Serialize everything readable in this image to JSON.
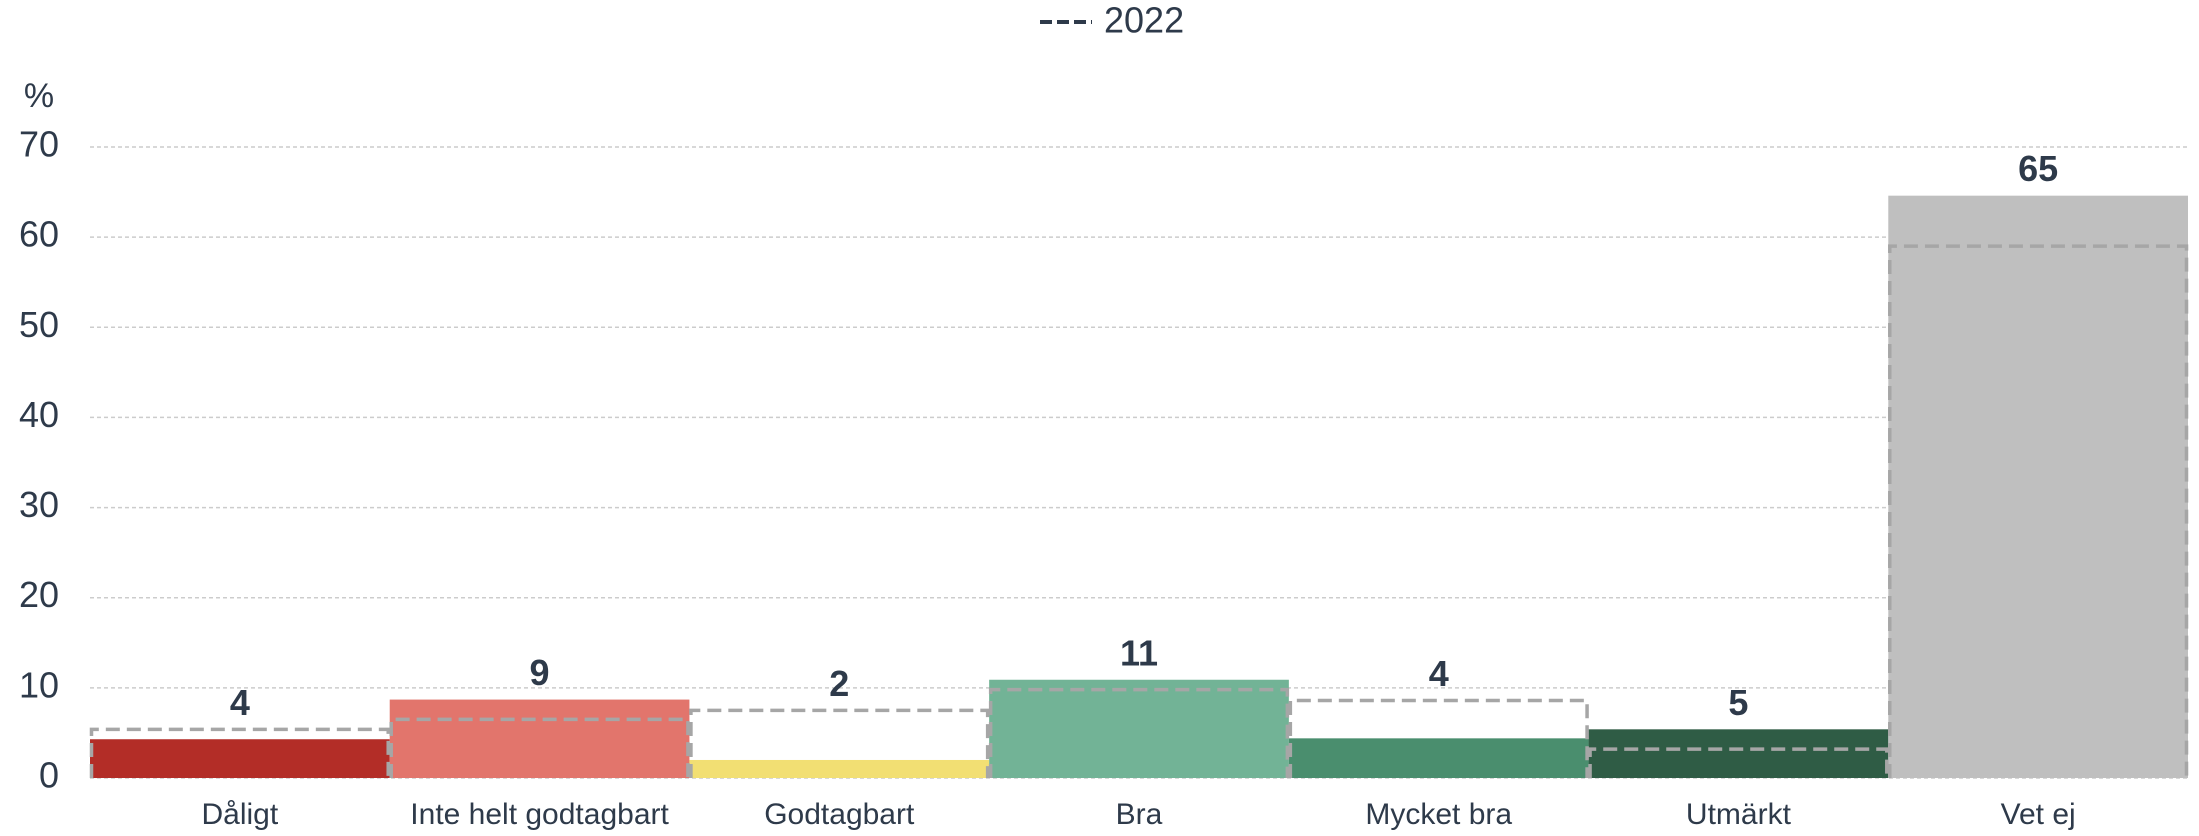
{
  "chart_data": {
    "type": "bar",
    "y_label": "%",
    "categories": [
      "Dåligt",
      "Inte helt godtagbart",
      "Godtagbart",
      "Bra",
      "Mycket bra",
      "Utmärkt",
      "Vet ej"
    ],
    "series": [
      {
        "colors": [
          "#b32d27",
          "#e2756c",
          "#f2df73",
          "#72b396",
          "#4a8e6e",
          "#2f5c45",
          "#bfbfbf"
        ],
        "values": [
          4.3,
          8.7,
          2,
          10.9,
          4.4,
          5.4,
          64.6
        ],
        "value_labels": [
          "4",
          "9",
          "2",
          "11",
          "4",
          "5",
          "65"
        ]
      },
      {
        "name": "2022",
        "color": "#a6a6a6",
        "dashed": true,
        "values": [
          5.4,
          6.5,
          7.5,
          9.8,
          8.6,
          3.2,
          59
        ]
      }
    ],
    "ylim": [
      0,
      70
    ],
    "yticks": [
      0,
      10,
      20,
      30,
      40,
      50,
      60,
      70
    ],
    "grid": true
  }
}
